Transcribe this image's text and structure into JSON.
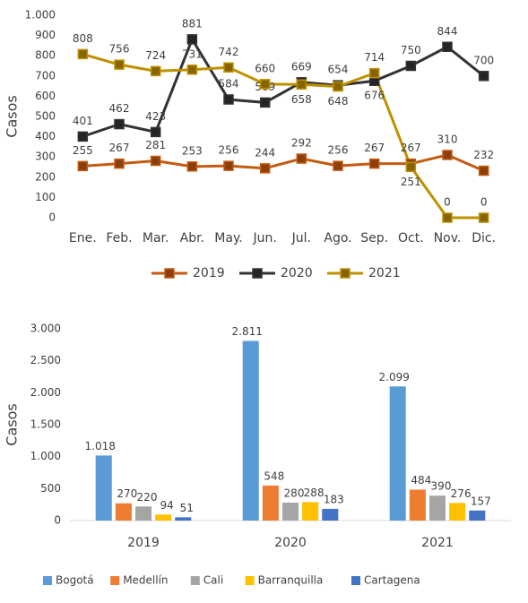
{
  "chart_data": [
    {
      "type": "line",
      "y_label": "Casos",
      "categories": [
        "Ene.",
        "Feb.",
        "Mar.",
        "Abr.",
        "May.",
        "Jun.",
        "Jul.",
        "Ago.",
        "Sep.",
        "Oct.",
        "Nov.",
        "Dic."
      ],
      "series": [
        {
          "name": "2019",
          "color": "#c55a11",
          "values": [
            255,
            267,
            281,
            253,
            256,
            244,
            292,
            256,
            267,
            267,
            310,
            232
          ]
        },
        {
          "name": "2020",
          "color": "#333333",
          "values": [
            401,
            462,
            423,
            881,
            584,
            569,
            669,
            654,
            676,
            750,
            844,
            700
          ]
        },
        {
          "name": "2021",
          "color": "#bf9000",
          "values": [
            808,
            756,
            724,
            731,
            742,
            660,
            658,
            648,
            714,
            251,
            0,
            0
          ]
        }
      ],
      "ylim": [
        0,
        1000
      ],
      "yticks": [
        0,
        100,
        200,
        300,
        400,
        500,
        600,
        700,
        800,
        900,
        {
          "value": 1000,
          "label": "1.000"
        }
      ],
      "legend": "bottom"
    },
    {
      "type": "bar",
      "y_label": "Casos",
      "categories": [
        "2019",
        "2020",
        "2021"
      ],
      "series": [
        {
          "name": "Bogotá",
          "color": "#5b9bd5",
          "values": [
            1018,
            2811,
            2099
          ],
          "value_labels": [
            "1.018",
            "2.811",
            "2.099"
          ]
        },
        {
          "name": "Medellín",
          "color": "#ed7d31",
          "values": [
            270,
            548,
            484
          ]
        },
        {
          "name": "Cali",
          "color": "#a5a5a5",
          "values": [
            220,
            280,
            390
          ]
        },
        {
          "name": "Barranquilla",
          "color": "#ffc000",
          "values": [
            94,
            288,
            276
          ]
        },
        {
          "name": "Cartagena",
          "color": "#4472c4",
          "values": [
            51,
            183,
            157
          ]
        }
      ],
      "ylim": [
        0,
        3000
      ],
      "yticks": [
        0,
        500,
        {
          "value": 1000,
          "label": "1.000"
        },
        {
          "value": 1500,
          "label": "1.500"
        },
        {
          "value": 2000,
          "label": "2.000"
        },
        {
          "value": 2500,
          "label": "2.500"
        },
        {
          "value": 3000,
          "label": "3.000"
        }
      ],
      "legend": "bottom"
    }
  ]
}
